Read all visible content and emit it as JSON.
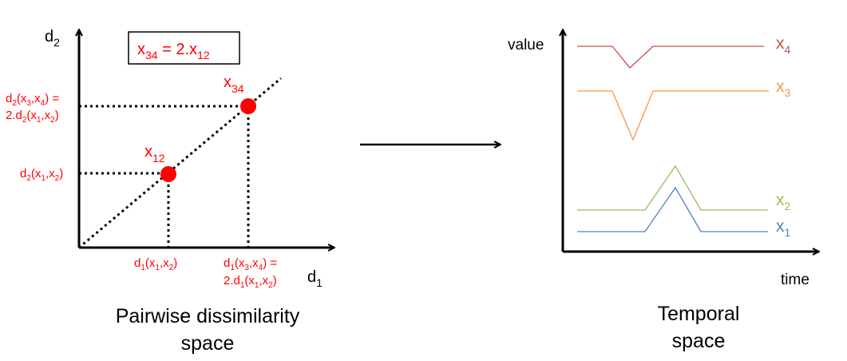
{
  "left_panel": {
    "y_axis_label": {
      "base": "d",
      "sub": "2"
    },
    "x_axis_label": {
      "base": "d",
      "sub": "1"
    },
    "relation_box": {
      "a": "x",
      "a_sub": "34",
      "middle": " = 2.x",
      "b_sub": "12"
    },
    "point_x12": {
      "base": "x",
      "sub": "12"
    },
    "point_x34": {
      "base": "x",
      "sub": "34"
    },
    "y_label_x12": "d2(x1,x2)",
    "y_label_x34_line1": "d2(x3,x4) =",
    "y_label_x34_line2": "2.d2(x1,x2)",
    "x_label_x12": "d1(x1,x2)",
    "x_label_x34_line1": "d1(x3,x4) =",
    "x_label_x34_line2": "2.d1(x1,x2)",
    "caption_line1": "Pairwise dissimilarity",
    "caption_line2": "space"
  },
  "right_panel": {
    "y_axis_label": "value",
    "x_axis_label": "time",
    "series": [
      {
        "base": "x",
        "sub": "4",
        "color": "#c0504d"
      },
      {
        "base": "x",
        "sub": "3",
        "color": "#f79646"
      },
      {
        "base": "x",
        "sub": "2",
        "color": "#9bbb59"
      },
      {
        "base": "x",
        "sub": "1",
        "color": "#4f81bd"
      }
    ],
    "caption_line1": "Temporal",
    "caption_line2": "space"
  },
  "colors": {
    "annotation": "#ff0000",
    "axis": "#000000"
  }
}
